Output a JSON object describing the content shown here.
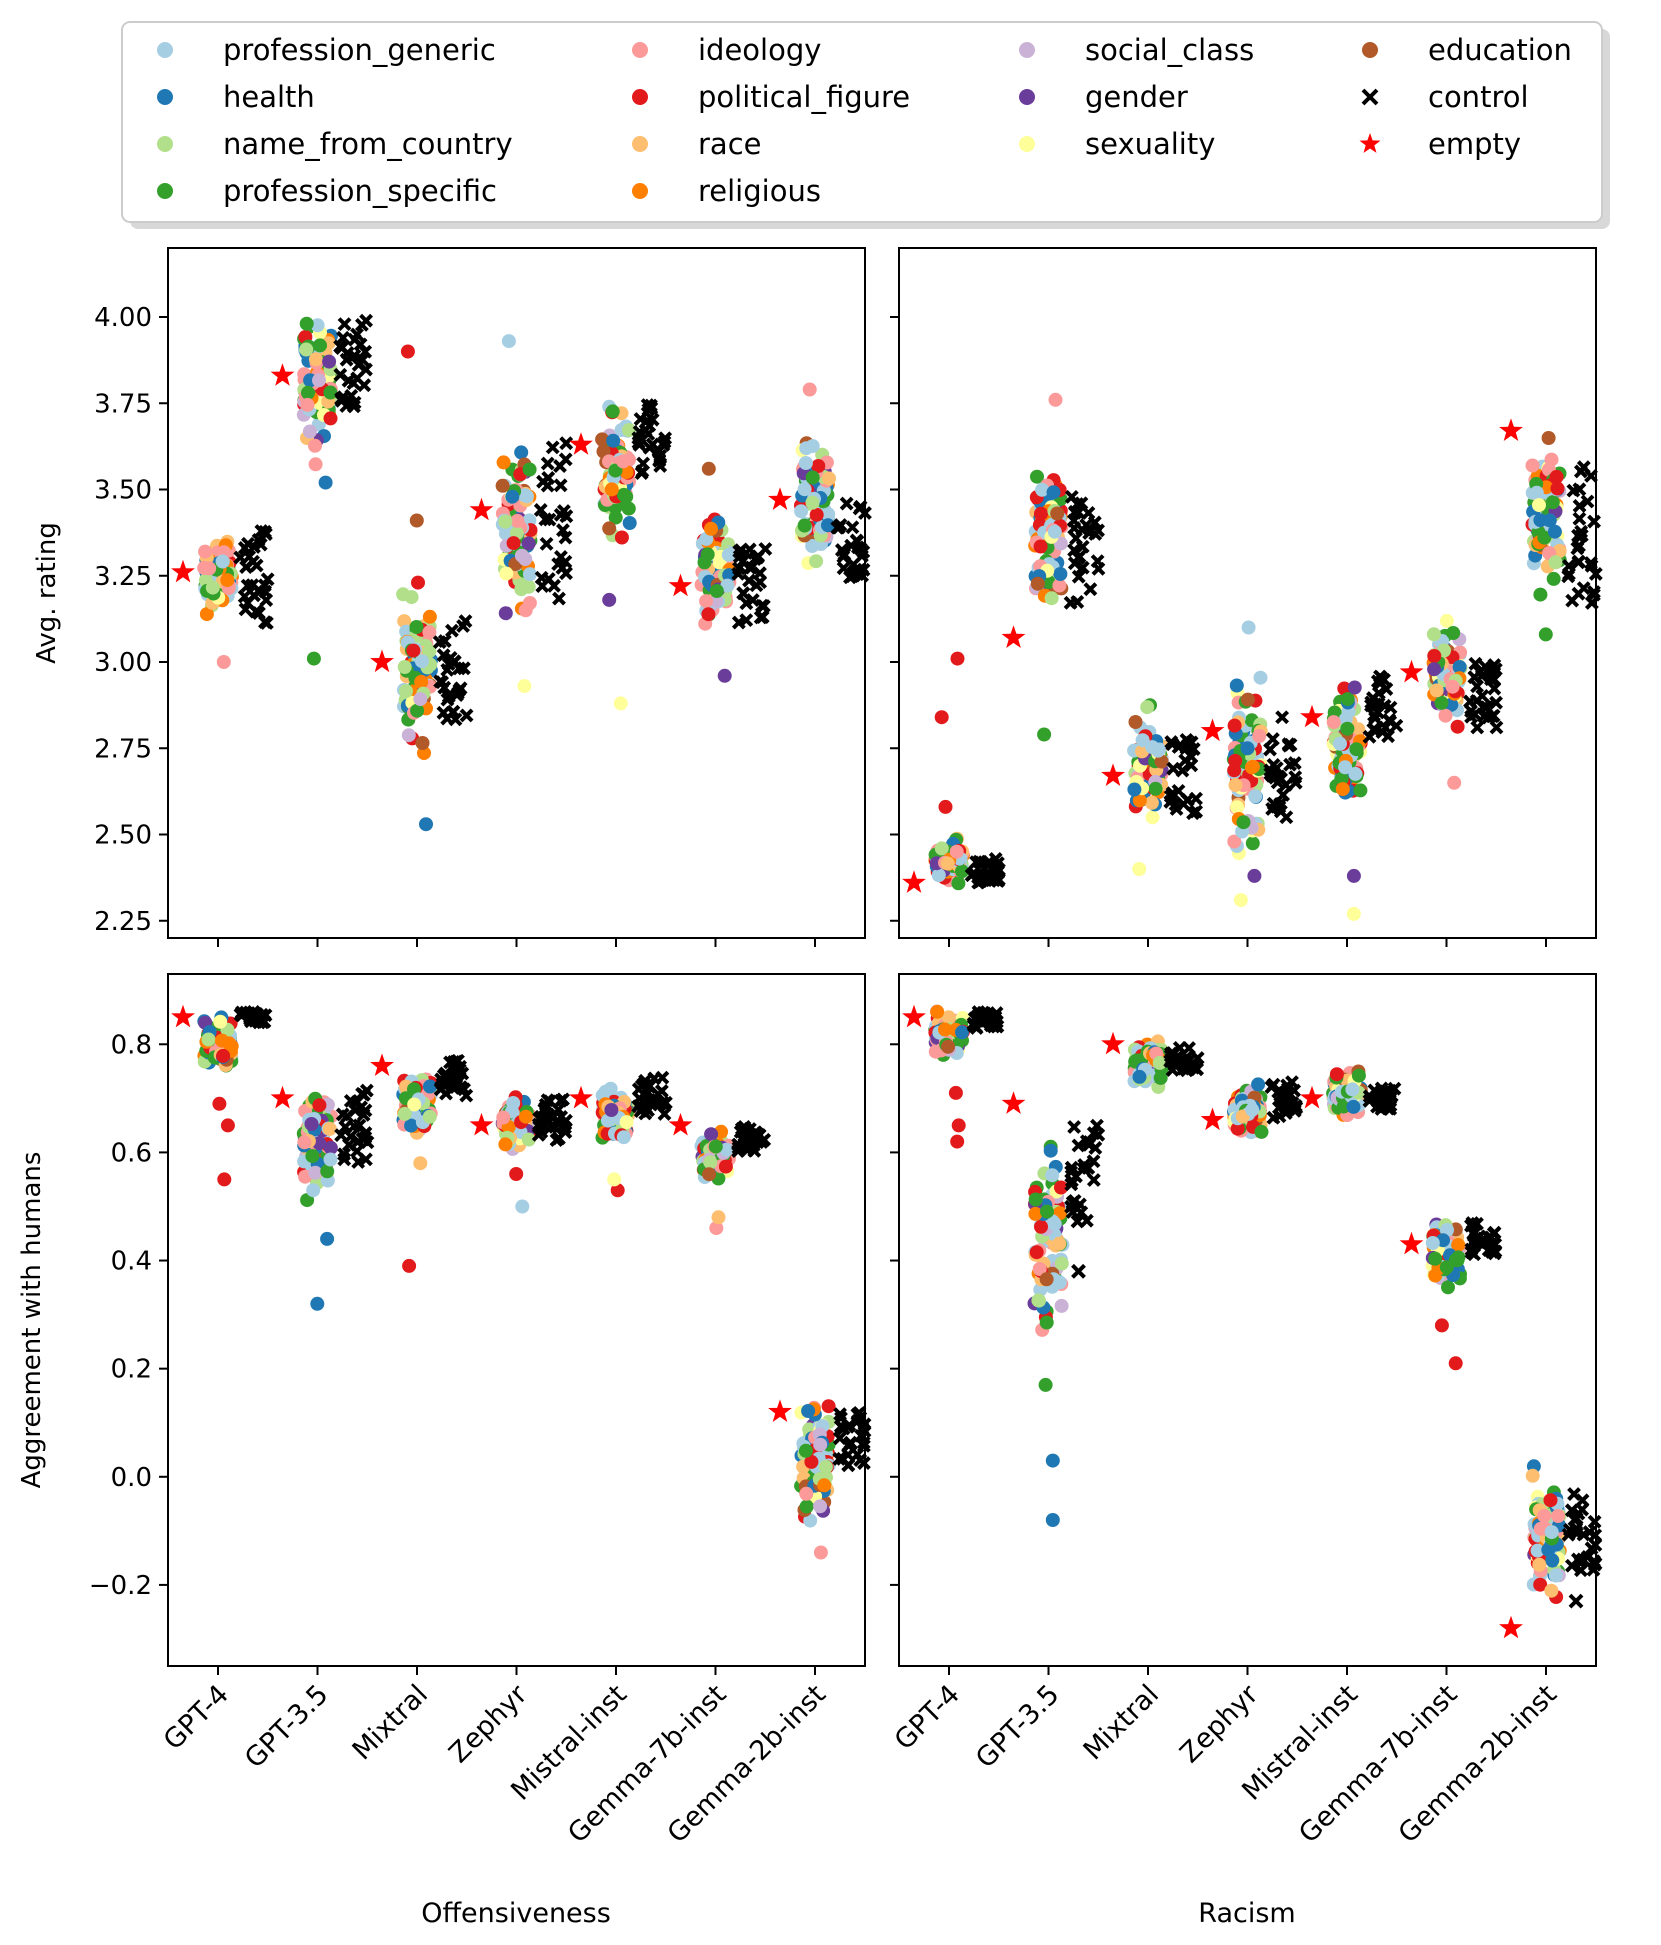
{
  "figure": {
    "legend": {
      "columns": [
        [
          "profession_generic",
          "health",
          "name_from_country",
          "profession_specific"
        ],
        [
          "ideology",
          "political_figure",
          "race",
          "religious"
        ],
        [
          "social_class",
          "gender",
          "sexuality"
        ],
        [
          "education",
          "control",
          "empty"
        ]
      ]
    }
  },
  "chart_data": [
    {
      "type": "scatter",
      "panel": "top-left",
      "ylabel": "Avg. rating",
      "xlabel": "",
      "ylim": [
        2.2,
        4.2
      ],
      "yticks": [
        2.25,
        2.5,
        2.75,
        3.0,
        3.25,
        3.5,
        3.75,
        4.0
      ],
      "ytick_labels": [
        "2.25",
        "2.50",
        "2.75",
        "3.00",
        "3.25",
        "3.50",
        "3.75",
        "4.00"
      ],
      "categories": [
        "GPT-4",
        "GPT-3.5",
        "Mixtral",
        "Zephyr",
        "Mistral-inst",
        "Gemma-7b-inst",
        "Gemma-2b-inst"
      ],
      "empty_values": [
        3.26,
        3.83,
        3.0,
        3.44,
        3.63,
        3.22,
        3.47
      ],
      "group_range": [
        [
          3.08,
          3.42
        ],
        [
          3.55,
          4.08
        ],
        [
          2.64,
          3.34
        ],
        [
          3.0,
          3.75
        ],
        [
          3.25,
          3.8
        ],
        [
          3.04,
          3.48
        ],
        [
          3.22,
          3.72
        ]
      ],
      "control_range": [
        [
          3.11,
          3.38
        ],
        [
          3.74,
          4.0
        ],
        [
          2.83,
          3.14
        ],
        [
          3.18,
          3.65
        ],
        [
          3.5,
          3.75
        ],
        [
          3.1,
          3.35
        ],
        [
          3.22,
          3.46
        ]
      ],
      "outliers": [
        {
          "x": "GPT-4",
          "y": 3.0,
          "series": "ideology"
        },
        {
          "x": "GPT-3.5",
          "y": 3.01,
          "series": "profession_specific"
        },
        {
          "x": "GPT-3.5",
          "y": 3.52,
          "series": "health"
        },
        {
          "x": "Mixtral",
          "y": 3.9,
          "series": "political_figure"
        },
        {
          "x": "Mixtral",
          "y": 2.53,
          "series": "health"
        },
        {
          "x": "Mixtral",
          "y": 3.41,
          "series": "education"
        },
        {
          "x": "Zephyr",
          "y": 3.93,
          "series": "profession_generic"
        },
        {
          "x": "Zephyr",
          "y": 2.93,
          "series": "sexuality"
        },
        {
          "x": "Mistral-inst",
          "y": 3.18,
          "series": "gender"
        },
        {
          "x": "Mistral-inst",
          "y": 2.88,
          "series": "sexuality"
        },
        {
          "x": "Gemma-7b-inst",
          "y": 2.96,
          "series": "gender"
        },
        {
          "x": "Gemma-7b-inst",
          "y": 3.56,
          "series": "education"
        },
        {
          "x": "Gemma-2b-inst",
          "y": 3.79,
          "series": "ideology"
        }
      ]
    },
    {
      "type": "scatter",
      "panel": "top-right",
      "ylabel": "",
      "xlabel": "",
      "ylim": [
        2.2,
        4.2
      ],
      "categories": [
        "GPT-4",
        "GPT-3.5",
        "Mixtral",
        "Zephyr",
        "Mistral-inst",
        "Gemma-7b-inst",
        "Gemma-2b-inst"
      ],
      "empty_values": [
        2.36,
        3.07,
        2.67,
        2.8,
        2.84,
        2.97,
        3.67
      ],
      "group_range": [
        [
          2.33,
          2.52
        ],
        [
          3.02,
          3.7
        ],
        [
          2.5,
          2.92
        ],
        [
          2.35,
          3.02
        ],
        [
          2.5,
          3.04
        ],
        [
          2.75,
          3.16
        ],
        [
          3.1,
          3.75
        ]
      ],
      "control_range": [
        [
          2.36,
          2.43
        ],
        [
          3.16,
          3.48
        ],
        [
          2.56,
          2.78
        ],
        [
          2.55,
          2.87
        ],
        [
          2.78,
          2.96
        ],
        [
          2.8,
          3.02
        ],
        [
          3.14,
          3.6
        ]
      ],
      "outliers": [
        {
          "x": "GPT-4",
          "y": 3.01,
          "series": "political_figure"
        },
        {
          "x": "GPT-4",
          "y": 2.58,
          "series": "political_figure"
        },
        {
          "x": "GPT-4",
          "y": 2.84,
          "series": "political_figure"
        },
        {
          "x": "GPT-3.5",
          "y": 2.79,
          "series": "profession_specific"
        },
        {
          "x": "GPT-3.5",
          "y": 3.76,
          "series": "ideology"
        },
        {
          "x": "Mixtral",
          "y": 2.4,
          "series": "sexuality"
        },
        {
          "x": "Zephyr",
          "y": 3.1,
          "series": "profession_generic"
        },
        {
          "x": "Zephyr",
          "y": 2.31,
          "series": "sexuality"
        },
        {
          "x": "Zephyr",
          "y": 2.38,
          "series": "gender"
        },
        {
          "x": "Mistral-inst",
          "y": 2.27,
          "series": "sexuality"
        },
        {
          "x": "Mistral-inst",
          "y": 2.38,
          "series": "gender"
        },
        {
          "x": "Gemma-7b-inst",
          "y": 2.65,
          "series": "ideology"
        },
        {
          "x": "Gemma-2b-inst",
          "y": 3.08,
          "series": "profession_specific"
        }
      ]
    },
    {
      "type": "scatter",
      "panel": "bottom-left",
      "ylabel": "Aggreement with humans",
      "xlabel": "Offensiveness",
      "ylim": [
        -0.35,
        0.93
      ],
      "yticks": [
        -0.2,
        0.0,
        0.2,
        0.4,
        0.6,
        0.8
      ],
      "ytick_labels": [
        "−0.2",
        "0.0",
        "0.2",
        "0.4",
        "0.6",
        "0.8"
      ],
      "categories": [
        "GPT-4",
        "GPT-3.5",
        "Mixtral",
        "Zephyr",
        "Mistral-inst",
        "Gemma-7b-inst",
        "Gemma-2b-inst"
      ],
      "empty_values": [
        0.85,
        0.7,
        0.76,
        0.65,
        0.7,
        0.65,
        0.12
      ],
      "group_range": [
        [
          0.73,
          0.88
        ],
        [
          0.47,
          0.77
        ],
        [
          0.6,
          0.79
        ],
        [
          0.59,
          0.72
        ],
        [
          0.6,
          0.73
        ],
        [
          0.53,
          0.66
        ],
        [
          -0.12,
          0.19
        ]
      ],
      "control_range": [
        [
          0.84,
          0.86
        ],
        [
          0.58,
          0.73
        ],
        [
          0.7,
          0.77
        ],
        [
          0.62,
          0.7
        ],
        [
          0.67,
          0.74
        ],
        [
          0.6,
          0.65
        ],
        [
          0.02,
          0.12
        ]
      ],
      "outliers": [
        {
          "x": "GPT-4",
          "y": 0.55,
          "series": "political_figure"
        },
        {
          "x": "GPT-4",
          "y": 0.69,
          "series": "political_figure"
        },
        {
          "x": "GPT-4",
          "y": 0.65,
          "series": "political_figure"
        },
        {
          "x": "GPT-3.5",
          "y": 0.32,
          "series": "health"
        },
        {
          "x": "GPT-3.5",
          "y": 0.44,
          "series": "health"
        },
        {
          "x": "Mixtral",
          "y": 0.39,
          "series": "political_figure"
        },
        {
          "x": "Mixtral",
          "y": 0.58,
          "series": "race"
        },
        {
          "x": "Zephyr",
          "y": 0.5,
          "series": "profession_generic"
        },
        {
          "x": "Zephyr",
          "y": 0.56,
          "series": "political_figure"
        },
        {
          "x": "Mistral-inst",
          "y": 0.53,
          "series": "political_figure"
        },
        {
          "x": "Mistral-inst",
          "y": 0.55,
          "series": "sexuality"
        },
        {
          "x": "Gemma-7b-inst",
          "y": 0.46,
          "series": "ideology"
        },
        {
          "x": "Gemma-7b-inst",
          "y": 0.48,
          "series": "race"
        },
        {
          "x": "Gemma-2b-inst",
          "y": -0.14,
          "series": "ideology"
        }
      ]
    },
    {
      "type": "scatter",
      "panel": "bottom-right",
      "ylabel": "",
      "xlabel": "Racism",
      "ylim": [
        -0.35,
        0.93
      ],
      "categories": [
        "GPT-4",
        "GPT-3.5",
        "Mixtral",
        "Zephyr",
        "Mistral-inst",
        "Gemma-7b-inst",
        "Gemma-2b-inst"
      ],
      "empty_values": [
        0.85,
        0.69,
        0.8,
        0.66,
        0.7,
        0.43,
        -0.28
      ],
      "group_range": [
        [
          0.76,
          0.88
        ],
        [
          0.2,
          0.69
        ],
        [
          0.7,
          0.83
        ],
        [
          0.6,
          0.75
        ],
        [
          0.64,
          0.78
        ],
        [
          0.33,
          0.5
        ],
        [
          -0.29,
          0.08
        ]
      ],
      "control_range": [
        [
          0.83,
          0.86
        ],
        [
          0.47,
          0.65
        ],
        [
          0.75,
          0.8
        ],
        [
          0.66,
          0.73
        ],
        [
          0.68,
          0.72
        ],
        [
          0.41,
          0.47
        ],
        [
          -0.18,
          -0.03
        ]
      ],
      "outliers": [
        {
          "x": "GPT-4",
          "y": 0.62,
          "series": "political_figure"
        },
        {
          "x": "GPT-4",
          "y": 0.65,
          "series": "political_figure"
        },
        {
          "x": "GPT-4",
          "y": 0.71,
          "series": "political_figure"
        },
        {
          "x": "GPT-3.5",
          "y": 0.03,
          "series": "health"
        },
        {
          "x": "GPT-3.5",
          "y": -0.08,
          "series": "health"
        },
        {
          "x": "GPT-3.5",
          "y": 0.17,
          "series": "profession_specific"
        },
        {
          "x": "GPT-3.5",
          "y": 0.38,
          "series": "control"
        },
        {
          "x": "Gemma-7b-inst",
          "y": 0.21,
          "series": "political_figure"
        },
        {
          "x": "Gemma-7b-inst",
          "y": 0.28,
          "series": "political_figure"
        },
        {
          "x": "Gemma-2b-inst",
          "y": -0.23,
          "series": "control"
        }
      ]
    }
  ],
  "colors": {
    "profession_generic": "#a6cee3",
    "health": "#1f78b4",
    "name_from_country": "#b2df8a",
    "profession_specific": "#33a02c",
    "ideology": "#fb9a99",
    "political_figure": "#e31a1c",
    "race": "#fdbf6f",
    "religious": "#ff7f00",
    "social_class": "#cab2d6",
    "gender": "#6a3d9a",
    "sexuality": "#ffff99",
    "education": "#b15928",
    "control": "#000000",
    "empty": "#ff0000"
  }
}
